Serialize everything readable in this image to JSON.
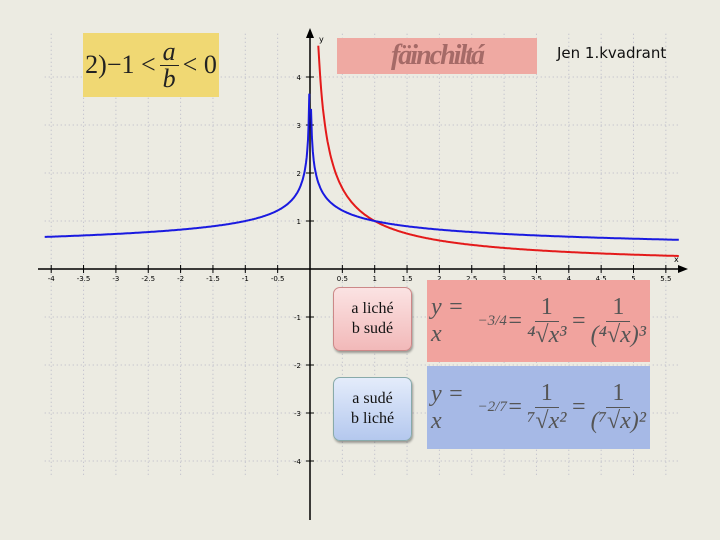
{
  "condition": {
    "prefix": "2)",
    "left": "−1 <",
    "numerator": "a",
    "denominator": "b",
    "right": "< 0"
  },
  "title_box": "fäinchiltá",
  "note": "Jen 1.kvadrant",
  "buttons": [
    {
      "line1": "a liché",
      "line2": "b sudé"
    },
    {
      "line1": "a sudé",
      "line2": "b liché"
    }
  ],
  "formulas": [
    {
      "lhs": "y = x",
      "exp": "−3/4",
      "eq": "=",
      "num": "1",
      "root": "⁴√x³",
      "root2": "(⁴√x)³"
    },
    {
      "lhs": "y = x",
      "exp": "−2/7",
      "eq": "=",
      "num": "1",
      "root": "⁷√x²",
      "root2": "(⁷√x)²"
    }
  ],
  "colors": {
    "red": "#e41a1a",
    "blue": "#1a1ae0",
    "yellow": "#f0d873"
  },
  "chart_data": {
    "type": "line",
    "xlabel": "x",
    "ylabel": "y",
    "xlim": [
      -4.1,
      5.7
    ],
    "ylim": [
      -4.3,
      4.9
    ],
    "grid": true,
    "x_ticks": [
      "-4",
      "-3.5",
      "-3",
      "-2.5",
      "-2",
      "-1.5",
      "-1",
      "-0.5",
      "0.5",
      "1",
      "1.5",
      "2",
      "2.5",
      "3",
      "3.5",
      "4",
      "4.5",
      "5",
      "5.5"
    ],
    "y_ticks": [
      "4",
      "3",
      "2",
      "1",
      "-1",
      "-2",
      "-3",
      "-4"
    ],
    "series": [
      {
        "function": "x^(-3/4)",
        "domain": [
          0,
          5.7
        ],
        "color": "#e41a1a"
      },
      {
        "function": "|x|^(-2/7)",
        "domain": [
          -4.1,
          5.7
        ],
        "color": "#1a1ae0"
      }
    ]
  }
}
